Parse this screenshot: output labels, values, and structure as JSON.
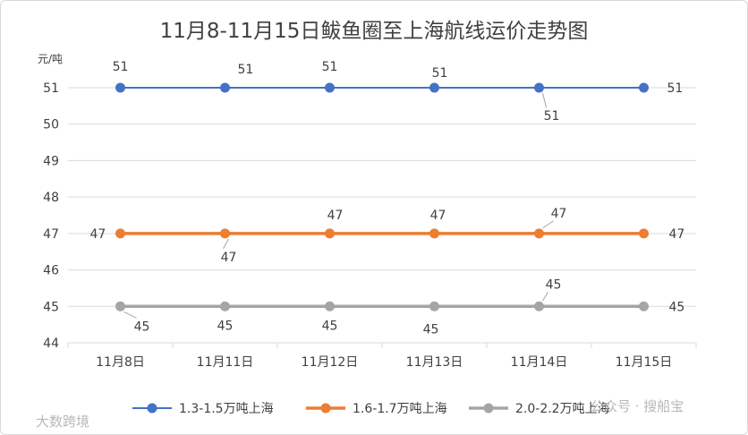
{
  "chart_data": {
    "type": "line",
    "title": "11月8-11月15日鲅鱼圈至上海航线运价走势图",
    "ylabel": "元/吨",
    "xlabel": "",
    "categories": [
      "11月8日",
      "11月11日",
      "11月12日",
      "11月13日",
      "11月14日",
      "11月15日"
    ],
    "ylim": [
      44,
      51
    ],
    "yticks": [
      44,
      45,
      46,
      47,
      48,
      49,
      50,
      51
    ],
    "grid": true,
    "legend_position": "bottom",
    "series": [
      {
        "name": "1.3-1.5万吨上海",
        "color": "#4472c4",
        "values": [
          51,
          51,
          51,
          51,
          51,
          51
        ]
      },
      {
        "name": "1.6-1.7万吨上海",
        "color": "#ed7d31",
        "values": [
          47,
          47,
          47,
          47,
          47,
          47
        ]
      },
      {
        "name": "2.0-2.2万吨上海",
        "color": "#a5a5a5",
        "values": [
          45,
          45,
          45,
          45,
          45,
          45
        ]
      }
    ]
  },
  "watermarks": {
    "bottom_left": "大数跨境",
    "bottom_right": "公众号 · 搜船宝"
  }
}
